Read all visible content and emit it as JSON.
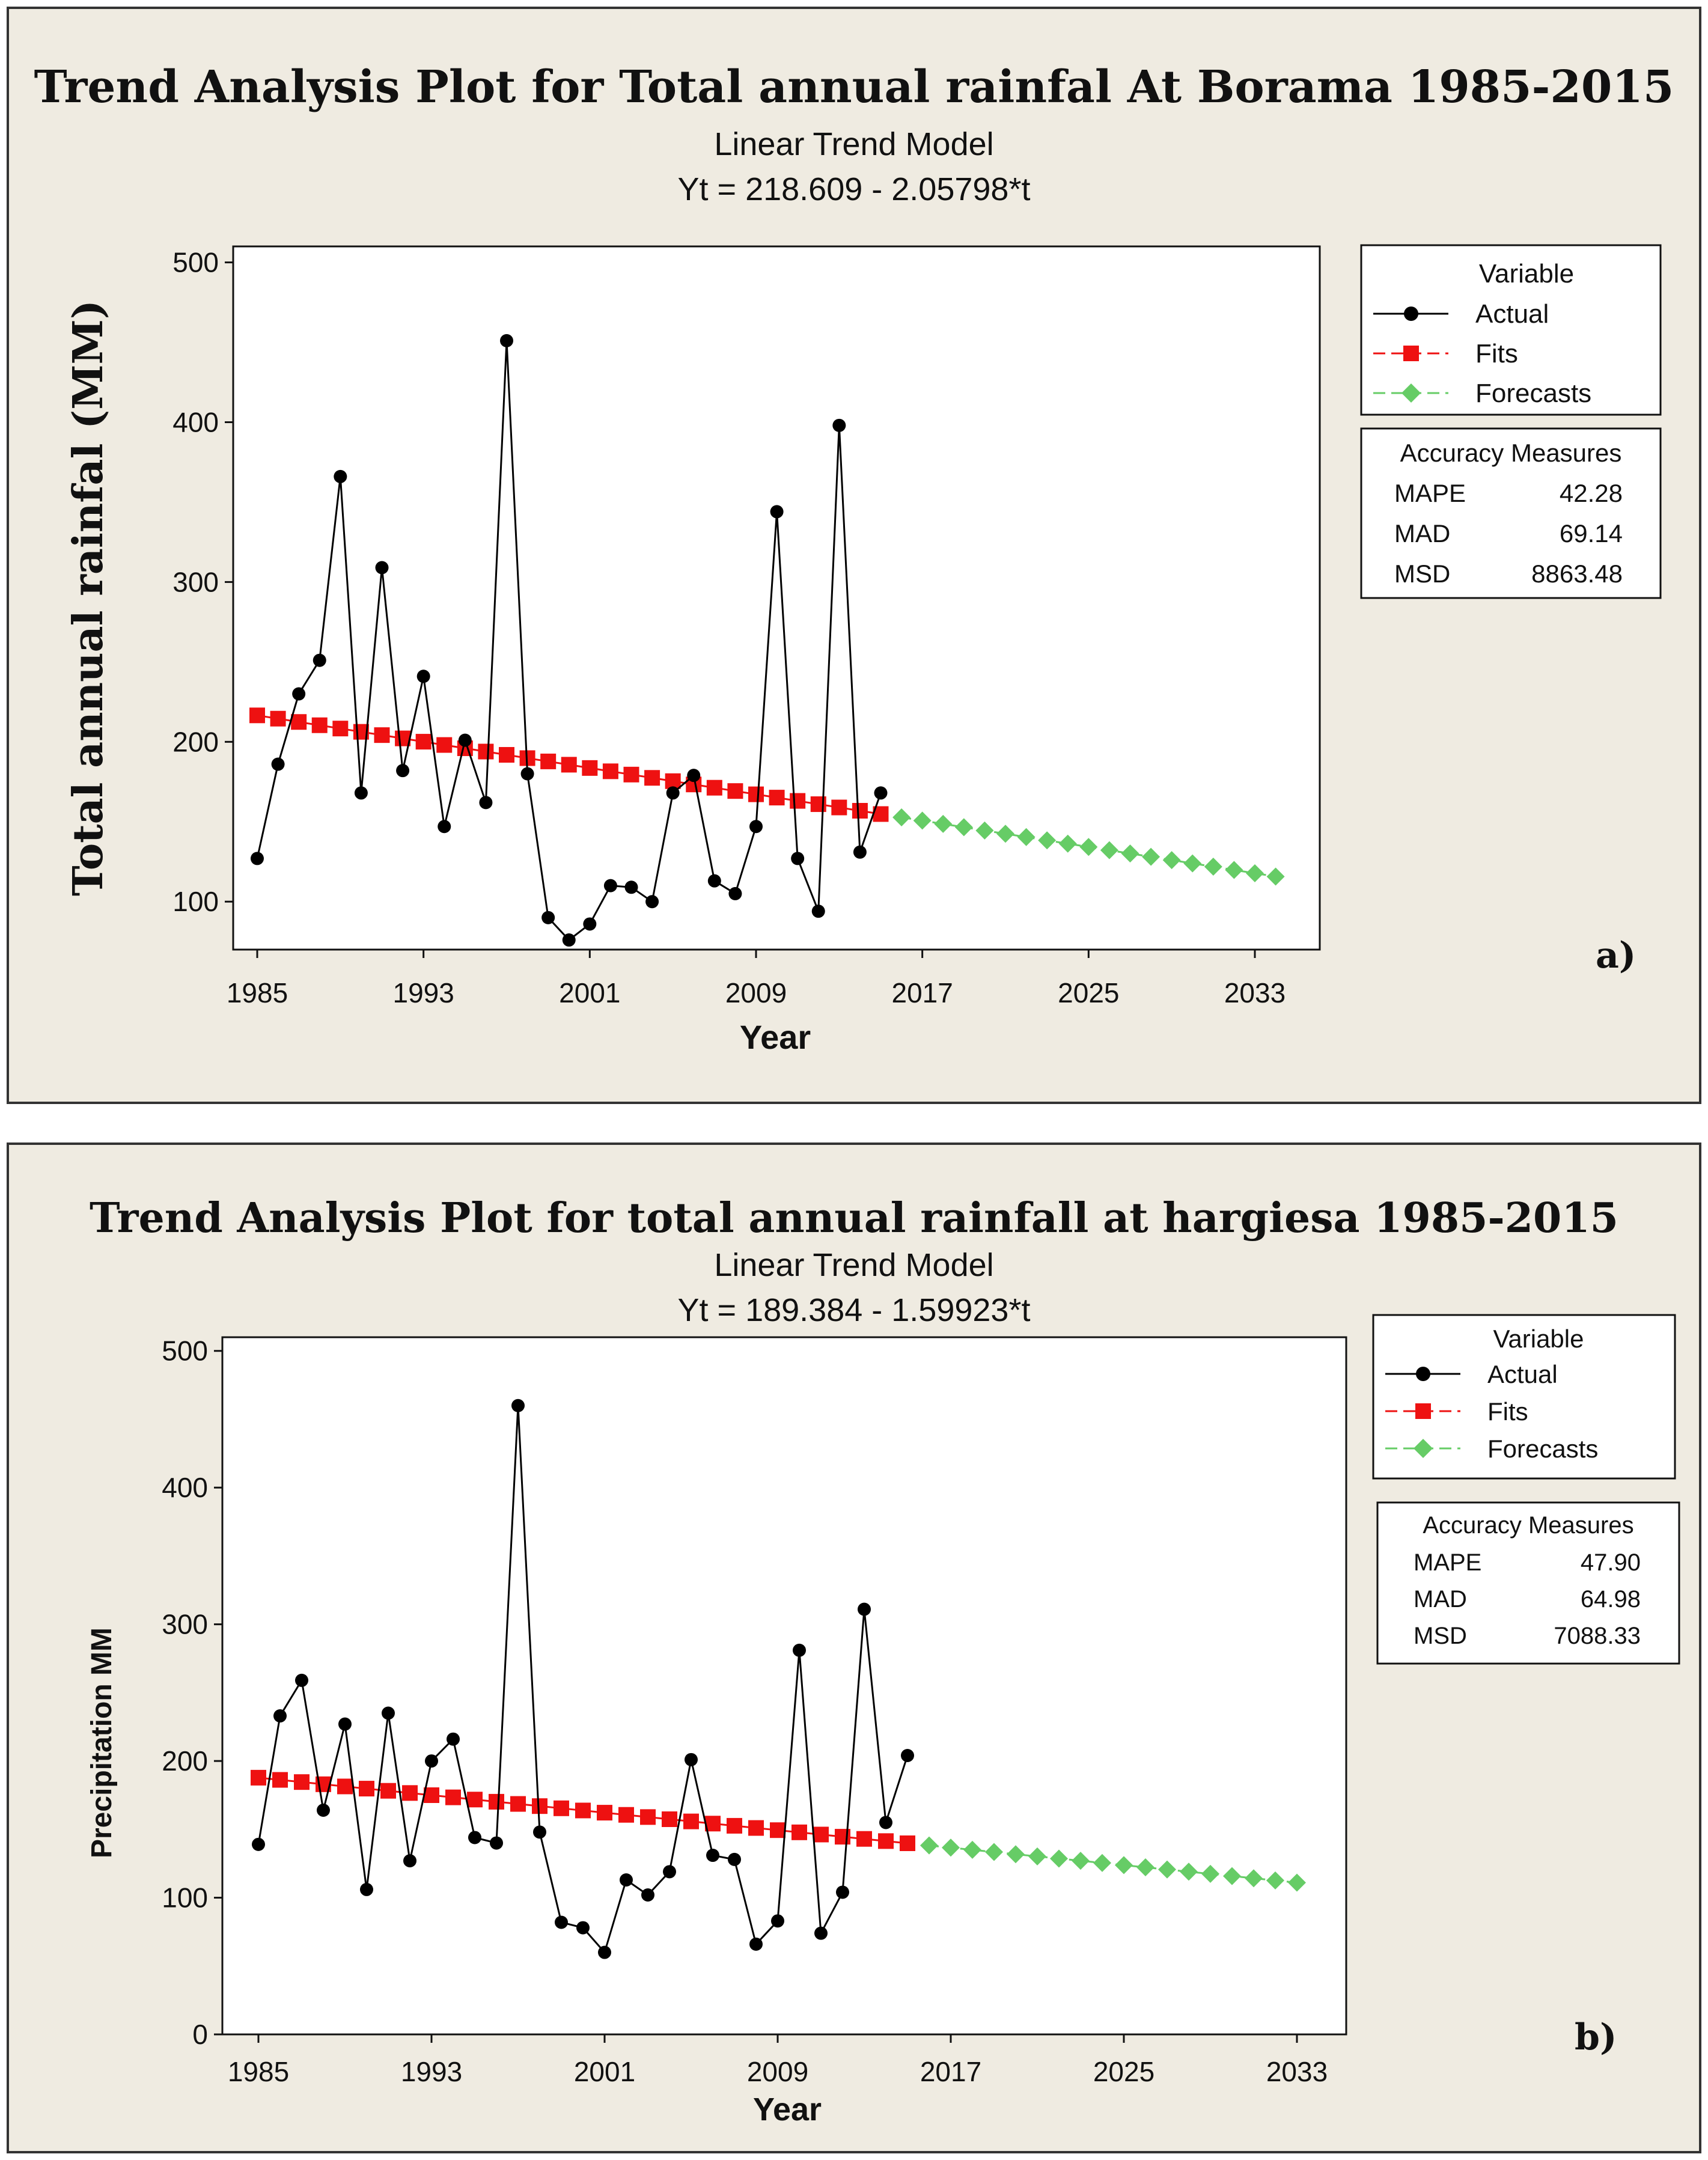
{
  "chart_data": [
    {
      "type": "line",
      "panel_label": "a)",
      "title": "Trend Analysis Plot for Total annual rainfal At Borama 1985-2015",
      "subtitle": "Linear Trend Model",
      "equation": "Yt = 218.609 - 2.05798*t",
      "xlabel": "Year",
      "ylabel": "Total annual rainfal (MM)",
      "xlim": [
        1985,
        2035
      ],
      "ylim": [
        70,
        510
      ],
      "xticks": [
        "1985",
        "1993",
        "2001",
        "2009",
        "2017",
        "2025",
        "2033"
      ],
      "yticks": [
        "100",
        "200",
        "300",
        "400",
        "500"
      ],
      "fit": {
        "intercept": 218.609,
        "slope": -2.05798
      },
      "series": [
        {
          "name": "Actual",
          "x": [
            1985,
            1986,
            1987,
            1988,
            1989,
            1990,
            1991,
            1992,
            1993,
            1994,
            1995,
            1996,
            1997,
            1998,
            1999,
            2000,
            2001,
            2002,
            2003,
            2004,
            2005,
            2006,
            2007,
            2008,
            2009,
            2010,
            2011,
            2012,
            2013,
            2014,
            2015
          ],
          "values": [
            127,
            186,
            230,
            251,
            366,
            168,
            309,
            182,
            241,
            147,
            201,
            162,
            451,
            180,
            90,
            76,
            86,
            110,
            109,
            100,
            168,
            179,
            113,
            105,
            147,
            344,
            127,
            94,
            398,
            131,
            168
          ]
        },
        {
          "name": "Fits",
          "t_range": [
            1,
            31
          ]
        },
        {
          "name": "Forecasts",
          "t_range": [
            32,
            50
          ]
        }
      ],
      "legend": {
        "title": "Variable",
        "entries": [
          "Actual",
          "Fits",
          "Forecasts"
        ]
      },
      "accuracy": {
        "title": "Accuracy Measures",
        "rows": [
          [
            "MAPE",
            "42.28"
          ],
          [
            "MAD",
            "69.14"
          ],
          [
            "MSD",
            "8863.48"
          ]
        ]
      },
      "colors": {
        "actual": "#000000",
        "fits": "#ee1111",
        "forecasts": "#66cc66",
        "frame_bg": "#efebe1"
      }
    },
    {
      "type": "line",
      "panel_label": "b)",
      "title": "Trend Analysis Plot for total annual rainfall at hargiesa 1985-2015",
      "subtitle": "Linear Trend Model",
      "equation": "Yt = 189.384 - 1.59923*t",
      "xlabel": "Year",
      "ylabel": "Precipitation MM",
      "xlim": [
        1985,
        2034
      ],
      "ylim": [
        0,
        510
      ],
      "xticks": [
        "1985",
        "1993",
        "2001",
        "2009",
        "2017",
        "2025",
        "2033"
      ],
      "yticks": [
        "0",
        "100",
        "200",
        "300",
        "400",
        "500"
      ],
      "fit": {
        "intercept": 189.384,
        "slope": -1.59923
      },
      "series": [
        {
          "name": "Actual",
          "x": [
            1985,
            1986,
            1987,
            1988,
            1989,
            1990,
            1991,
            1992,
            1993,
            1994,
            1995,
            1996,
            1997,
            1998,
            1999,
            2000,
            2001,
            2002,
            2003,
            2004,
            2005,
            2006,
            2007,
            2008,
            2009,
            2010,
            2011,
            2012,
            2013,
            2014,
            2015
          ],
          "values": [
            139,
            233,
            259,
            164,
            227,
            106,
            235,
            127,
            200,
            216,
            144,
            140,
            460,
            148,
            82,
            78,
            60,
            113,
            102,
            119,
            201,
            131,
            128,
            66,
            83,
            281,
            74,
            104,
            311,
            155,
            204
          ]
        },
        {
          "name": "Fits",
          "t_range": [
            1,
            31
          ]
        },
        {
          "name": "Forecasts",
          "t_range": [
            32,
            49
          ]
        }
      ],
      "legend": {
        "title": "Variable",
        "entries": [
          "Actual",
          "Fits",
          "Forecasts"
        ]
      },
      "accuracy": {
        "title": "Accuracy Measures",
        "rows": [
          [
            "MAPE",
            "47.90"
          ],
          [
            "MAD",
            "64.98"
          ],
          [
            "MSD",
            "7088.33"
          ]
        ]
      },
      "colors": {
        "actual": "#000000",
        "fits": "#ee1111",
        "forecasts": "#66cc66",
        "frame_bg": "#efebe1"
      }
    }
  ]
}
